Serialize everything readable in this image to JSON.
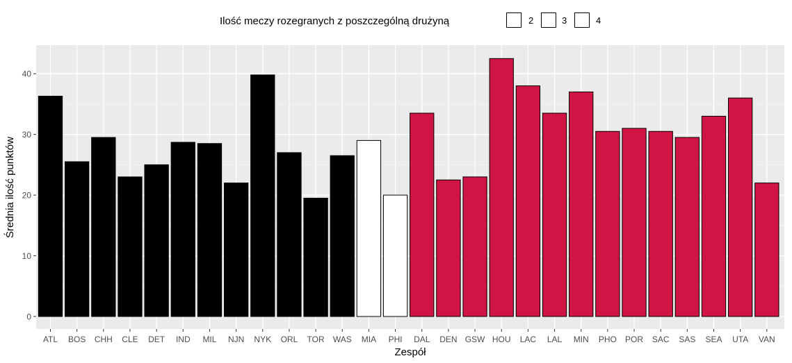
{
  "chart_data": {
    "type": "bar",
    "xlabel": "Zespół",
    "ylabel": "Średnia ilość punktów",
    "ylim": [
      0,
      44
    ],
    "yticks": [
      0,
      10,
      20,
      30,
      40
    ],
    "grid": true,
    "legend_position": "top",
    "legend": {
      "title": "Ilość meczy rozegranych z poszczególną drużyną",
      "entries": [
        {
          "label": "2",
          "color": "#D01443"
        },
        {
          "label": "3",
          "color": "#FFFFFF"
        },
        {
          "label": "4",
          "color": "#000000"
        }
      ]
    },
    "categories": [
      "ATL",
      "BOS",
      "CHH",
      "CLE",
      "DET",
      "IND",
      "MIL",
      "NJN",
      "NYK",
      "ORL",
      "TOR",
      "WAS",
      "MIA",
      "PHI",
      "DAL",
      "DEN",
      "GSW",
      "HOU",
      "LAC",
      "LAL",
      "MIN",
      "PHO",
      "POR",
      "SAC",
      "SAS",
      "SEA",
      "UTA",
      "VAN"
    ],
    "values": [
      36.3,
      25.5,
      29.5,
      23.0,
      25.0,
      28.7,
      28.5,
      22.0,
      39.8,
      27.0,
      19.5,
      26.5,
      29.0,
      20.0,
      33.5,
      22.5,
      23.0,
      42.5,
      38.0,
      33.5,
      37.0,
      30.5,
      31.0,
      30.5,
      29.5,
      33.0,
      36.0,
      22.0
    ],
    "groups": [
      "4",
      "4",
      "4",
      "4",
      "4",
      "4",
      "4",
      "4",
      "4",
      "4",
      "4",
      "4",
      "3",
      "3",
      "2",
      "2",
      "2",
      "2",
      "2",
      "2",
      "2",
      "2",
      "2",
      "2",
      "2",
      "2",
      "2",
      "2"
    ]
  }
}
